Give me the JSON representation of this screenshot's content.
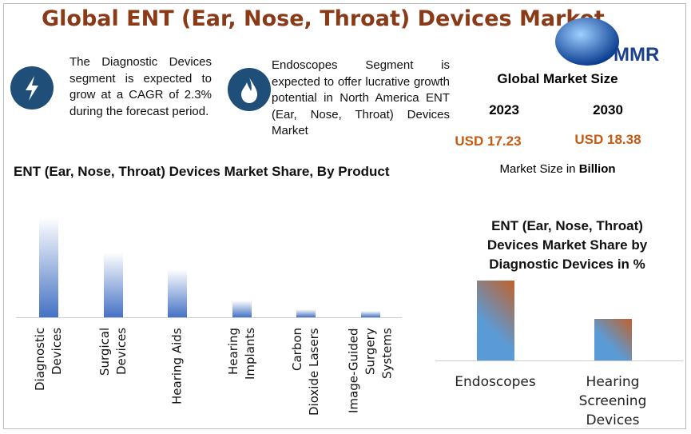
{
  "header": {
    "title": "Global ENT (Ear, Nose, Throat) Devices Market",
    "logo": "MMR"
  },
  "highlights": [
    {
      "text": "The Diagnostic Devices segment is expected to grow at a CAGR of 2.3% during the forecast period."
    },
    {
      "text": "Endoscopes Segment is expected to offer lucrative growth potential in North America ENT (Ear, Nose, Throat) Devices Market"
    }
  ],
  "market_size": {
    "title": "Global Market Size",
    "columns": [
      {
        "year": "2023",
        "value": "USD 17.23"
      },
      {
        "year": "2030",
        "value": "USD 18.38"
      }
    ],
    "note": "Market Size in",
    "note_unit": "Billion"
  },
  "chart_data": [
    {
      "type": "bar",
      "title": "ENT (Ear, Nose, Throat) Devices Market Share, By Product",
      "categories": [
        "Diagnostic Devices",
        "Surgical Devices",
        "Hearing Aids",
        "Hearing Implants",
        "Carbon Dioxide Lasers",
        "Image-Guided Surgery Systems"
      ],
      "values": [
        48,
        31,
        23,
        8,
        4,
        3
      ],
      "color": "#4472c4"
    },
    {
      "type": "bar",
      "title": "ENT (Ear, Nose, Throat) Devices Market Share by Diagnostic Devices in %",
      "categories": [
        "Endoscopes",
        "Hearing Screening Devices"
      ],
      "values": [
        66,
        34
      ],
      "color": "#5b9bd5"
    }
  ]
}
